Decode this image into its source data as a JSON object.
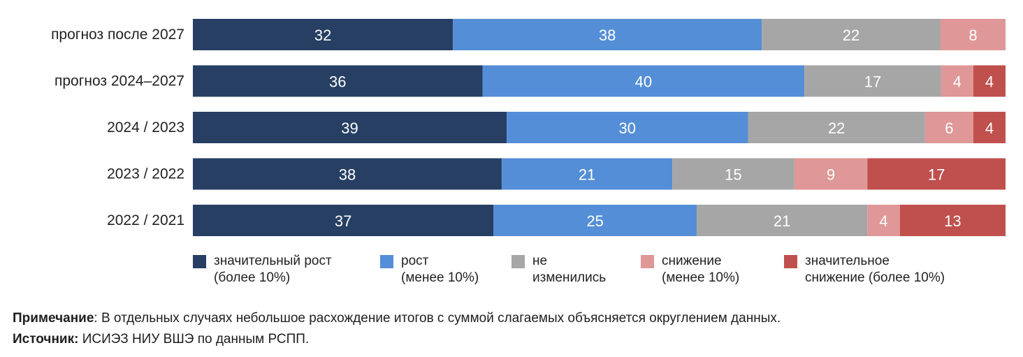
{
  "chart_data": {
    "type": "bar",
    "orientation": "horizontal",
    "stacked": true,
    "categories": [
      "прогноз после 2027",
      "прогноз 2024–2027",
      "2024 / 2023",
      "2023 / 2022",
      "2022 / 2021"
    ],
    "series": [
      {
        "name": "значительный рост (более 10%)",
        "color": "#263f63",
        "values": [
          32,
          36,
          39,
          38,
          37
        ]
      },
      {
        "name": "рост (менее 10%)",
        "color": "#548ed6",
        "values": [
          38,
          40,
          30,
          21,
          25
        ]
      },
      {
        "name": "не изменились",
        "color": "#a6a6a6",
        "values": [
          22,
          17,
          22,
          15,
          21
        ]
      },
      {
        "name": "снижение (менее 10%)",
        "color": "#df9797",
        "values": [
          8,
          4,
          6,
          9,
          4
        ]
      },
      {
        "name": "значительное снижение (более 10%)",
        "color": "#c0504d",
        "values": [
          0,
          4,
          4,
          17,
          13
        ]
      }
    ],
    "legend_lines": [
      [
        "значительный рост",
        "(более 10%)"
      ],
      [
        "рост",
        "(менее 10%)"
      ],
      [
        "не",
        "изменились"
      ],
      [
        "снижение",
        "(менее 10%)"
      ],
      [
        "значительное",
        "снижение (более 10%)"
      ]
    ],
    "legend_position": "bottom",
    "grid": false
  },
  "notes": {
    "note_label": "Примечание",
    "note_text": ": В отдельных случаях небольшое расхождение итогов с суммой слагаемых объясняется округлением данных.",
    "source_label": "Источник:",
    "source_text": " ИСИЭЗ НИУ ВШЭ по данным РСПП."
  }
}
